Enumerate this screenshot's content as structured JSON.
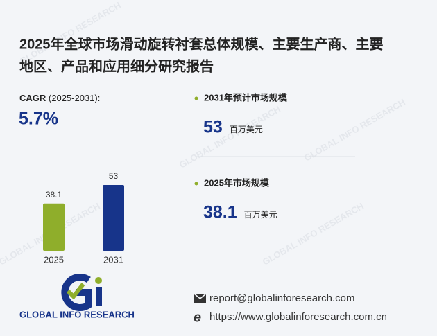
{
  "title": {
    "line1": "2025年全球市场滑动旋转衬套总体规模、主要生产商、主要",
    "line2": "地区、产品和应用细分研究报告"
  },
  "cagr": {
    "label": "CAGR",
    "period": "(2025-2031):",
    "value": "5.7%"
  },
  "chart_data": {
    "type": "bar",
    "categories": [
      "2025",
      "2031"
    ],
    "values": [
      38.1,
      53
    ],
    "colors": [
      "#8fae2b",
      "#17348a"
    ]
  },
  "stats": [
    {
      "label": "2031年预计市场规模",
      "value": 53,
      "unit": "百万美元"
    },
    {
      "label": "2025年市场规模",
      "value": 38.1,
      "unit": "百万美元"
    }
  ],
  "logo": {
    "text": "GLOBAL INFO RESEARCH"
  },
  "contact": {
    "email": "report@globalinforesearch.com",
    "website": "https://www.globalinforesearch.com.cn"
  }
}
